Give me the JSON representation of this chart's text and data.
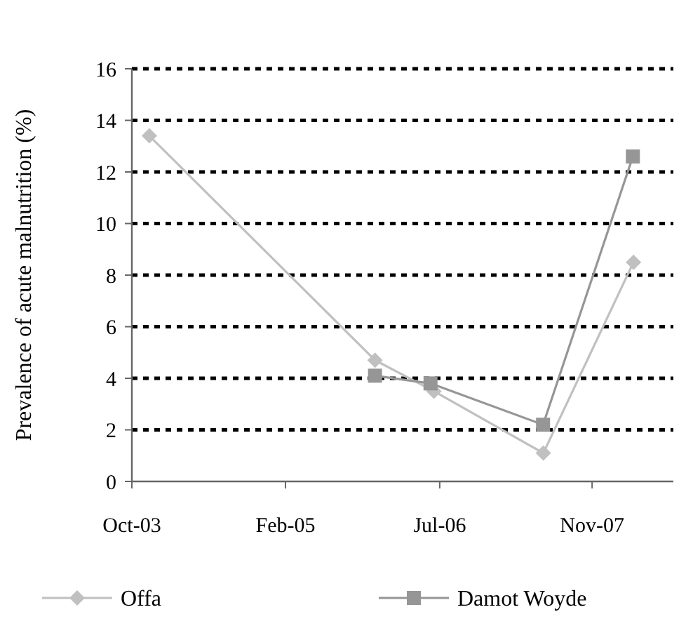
{
  "chart_data": {
    "type": "line",
    "ylabel": "Prevalence of acute malnutrition (%)",
    "xlim": [
      "2003-10-01",
      "2008-08-01"
    ],
    "xticks": [
      {
        "value": "2003-10-01",
        "label": "Oct-03"
      },
      {
        "value": "2005-02-13",
        "label": "Feb-05"
      },
      {
        "value": "2006-07-01",
        "label": "Jul-06"
      },
      {
        "value": "2007-11-10",
        "label": "Nov-07"
      }
    ],
    "ylim": [
      0,
      16
    ],
    "yticks": [
      0,
      2,
      4,
      6,
      8,
      10,
      12,
      14,
      16
    ],
    "grid": "y",
    "legend": "bottom",
    "line_style": "solid",
    "series": [
      {
        "name": "Offa",
        "color": "#c0c0c0",
        "marker": "diamond",
        "x": [
          "2003-11-27",
          "2005-12-02",
          "2006-06-12",
          "2007-06-04",
          "2008-03-24"
        ],
        "values": [
          13.4,
          4.7,
          3.5,
          1.1,
          8.5
        ]
      },
      {
        "name": "Damot Woyde",
        "color": "#969696",
        "marker": "square",
        "x": [
          "2005-12-02",
          "2006-06-01",
          "2007-06-03",
          "2008-03-22"
        ],
        "values": [
          4.1,
          3.8,
          2.2,
          12.6
        ]
      }
    ]
  }
}
